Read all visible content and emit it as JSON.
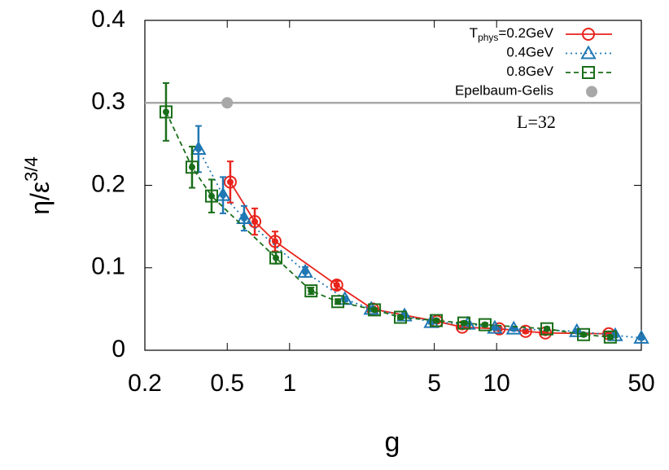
{
  "chart_data": {
    "type": "line",
    "x_label": "g",
    "y_label": [
      "η/ε",
      "3/4"
    ],
    "annotation": "L=32",
    "xscale": "log",
    "xlim": [
      0.2,
      50
    ],
    "xticks": [
      0.2,
      0.5,
      1,
      5,
      10,
      50
    ],
    "ylim": [
      0,
      0.4
    ],
    "yticks": [
      0,
      0.1,
      0.2,
      0.3,
      0.4
    ],
    "hlines": [
      {
        "value": 0.3,
        "color": "#a8a8a8"
      }
    ],
    "series": [
      {
        "name": [
          "T",
          "phys",
          "=0.2GeV"
        ],
        "color": "#e8231b",
        "marker": "circle",
        "dash": "",
        "x": [
          0.517,
          0.679,
          0.851,
          1.69,
          2.52,
          5.15,
          6.82,
          10.3,
          13.8,
          17.2,
          34.8
        ],
        "values": [
          0.204,
          0.156,
          0.132,
          0.079,
          0.05,
          0.035,
          0.028,
          0.026,
          0.023,
          0.021,
          0.02
        ],
        "errors": [
          0.025,
          0.016,
          0.012,
          0.005,
          0.003,
          0.002,
          0.002,
          0.002,
          0.002,
          0.002,
          0.002
        ]
      },
      {
        "name": [
          "0.4GeV"
        ],
        "color": "#1f77b4",
        "marker": "triangle",
        "dash": "2 4",
        "x": [
          0.363,
          0.477,
          0.603,
          1.19,
          1.85,
          2.48,
          3.59,
          4.84,
          7.27,
          9.8,
          12.1,
          24.4,
          37.4,
          50
        ],
        "values": [
          0.244,
          0.188,
          0.16,
          0.095,
          0.062,
          0.05,
          0.042,
          0.034,
          0.032,
          0.027,
          0.026,
          0.023,
          0.018,
          0.015
        ],
        "errors": [
          0.028,
          0.022,
          0.015,
          0.006,
          0.003,
          0.002,
          0.002,
          0.002,
          0.002,
          0.002,
          0.002,
          0.002,
          0.002,
          0.002
        ]
      },
      {
        "name": [
          "0.8GeV"
        ],
        "color": "#1a6e1a",
        "marker": "square",
        "dash": "6 4",
        "x": [
          0.253,
          0.338,
          0.42,
          0.859,
          1.27,
          1.71,
          2.57,
          3.43,
          5.11,
          6.95,
          8.79,
          17.5,
          26.3,
          35.4
        ],
        "values": [
          0.289,
          0.222,
          0.187,
          0.112,
          0.072,
          0.059,
          0.049,
          0.04,
          0.036,
          0.033,
          0.031,
          0.026,
          0.019,
          0.016
        ],
        "errors": [
          0.035,
          0.025,
          0.02,
          0.007,
          0.004,
          0.003,
          0.002,
          0.002,
          0.002,
          0.002,
          0.002,
          0.002,
          0.002,
          0.002
        ]
      },
      {
        "name": [
          "Epelbaum-Gelis"
        ],
        "color": "#a8a8a8",
        "marker": "dot",
        "x": [
          0.5
        ],
        "values": [
          0.3
        ]
      }
    ]
  }
}
